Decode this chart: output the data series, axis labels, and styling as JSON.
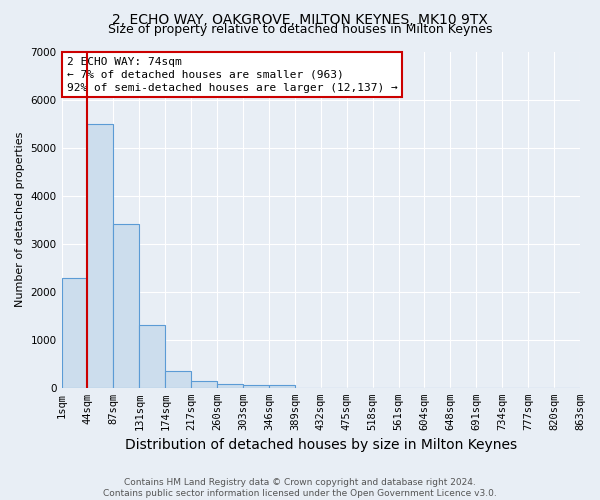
{
  "title": "2, ECHO WAY, OAKGROVE, MILTON KEYNES, MK10 9TX",
  "subtitle": "Size of property relative to detached houses in Milton Keynes",
  "xlabel": "Distribution of detached houses by size in Milton Keynes",
  "ylabel": "Number of detached properties",
  "footer1": "Contains HM Land Registry data © Crown copyright and database right 2024.",
  "footer2": "Contains public sector information licensed under the Open Government Licence v3.0.",
  "annotation_line1": "2 ECHO WAY: 74sqm",
  "annotation_line2": "← 7% of detached houses are smaller (963)",
  "annotation_line3": "92% of semi-detached houses are larger (12,137) →",
  "bar_values": [
    2280,
    5500,
    3400,
    1300,
    350,
    150,
    75,
    50,
    50,
    0,
    0,
    0,
    0,
    0,
    0,
    0,
    0,
    0,
    0,
    0
  ],
  "x_labels": [
    "1sqm",
    "44sqm",
    "87sqm",
    "131sqm",
    "174sqm",
    "217sqm",
    "260sqm",
    "303sqm",
    "346sqm",
    "389sqm",
    "432sqm",
    "475sqm",
    "518sqm",
    "561sqm",
    "604sqm",
    "648sqm",
    "691sqm",
    "734sqm",
    "777sqm",
    "820sqm",
    "863sqm"
  ],
  "bar_color": "#ccdded",
  "bar_edge_color": "#5b9bd5",
  "marker_color": "#cc0000",
  "bg_color": "#e8eef5",
  "plot_bg": "#e8eef5",
  "ylim": [
    0,
    7000
  ],
  "grid_color": "#ffffff",
  "annotation_box_color": "#cc0000",
  "title_fontsize": 10,
  "subtitle_fontsize": 9,
  "xlabel_fontsize": 10,
  "ylabel_fontsize": 8,
  "tick_fontsize": 7.5,
  "annotation_fontsize": 8,
  "footer_fontsize": 6.5
}
